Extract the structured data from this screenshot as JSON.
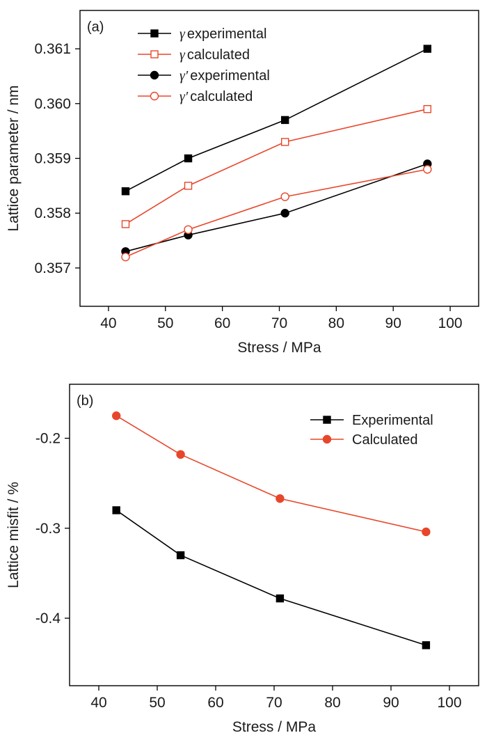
{
  "chart_data": [
    {
      "type": "line",
      "panel_label": "(a)",
      "xlabel": "Stress / MPa",
      "ylabel": "Lattice parameter / nm",
      "xlim": [
        35,
        105
      ],
      "ylim": [
        0.3563,
        0.3617
      ],
      "xticks": [
        40,
        50,
        60,
        70,
        80,
        90,
        100
      ],
      "xtick_labels": [
        "40",
        "50",
        "60",
        "70",
        "80",
        "90",
        "100"
      ],
      "yticks": [
        0.357,
        0.358,
        0.359,
        0.36,
        0.361
      ],
      "ytick_labels": [
        "0.357",
        "0.358",
        "0.359",
        "0.360",
        "0.361"
      ],
      "grid": false,
      "legend_position": "top-left",
      "series": [
        {
          "name": "γ experimental",
          "symbol": "γ",
          "label": "experimental",
          "color": "#000000",
          "marker": "square",
          "filled": true,
          "x": [
            43,
            54,
            71,
            96
          ],
          "y": [
            0.3584,
            0.359,
            0.3597,
            0.361
          ]
        },
        {
          "name": "γ calculated",
          "symbol": "γ",
          "label": "calculated",
          "color": "#e8462a",
          "marker": "square",
          "filled": false,
          "x": [
            43,
            54,
            71,
            96
          ],
          "y": [
            0.3578,
            0.3585,
            0.3593,
            0.3599
          ]
        },
        {
          "name": "γ′ experimental",
          "symbol": "γ′",
          "label": "experimental",
          "color": "#000000",
          "marker": "circle",
          "filled": true,
          "x": [
            43,
            54,
            71,
            96
          ],
          "y": [
            0.3573,
            0.3576,
            0.358,
            0.3589
          ]
        },
        {
          "name": "γ′ calculated",
          "symbol": "γ′",
          "label": "calculated",
          "color": "#e8462a",
          "marker": "circle",
          "filled": false,
          "x": [
            43,
            54,
            71,
            96
          ],
          "y": [
            0.3572,
            0.3577,
            0.3583,
            0.3588
          ]
        }
      ]
    },
    {
      "type": "line",
      "panel_label": "(b)",
      "xlabel": "Stress / MPa",
      "ylabel": "Lattice misfit / %",
      "xlim": [
        35,
        105
      ],
      "ylim": [
        -0.475,
        -0.14
      ],
      "xticks": [
        40,
        50,
        60,
        70,
        80,
        90,
        100
      ],
      "xtick_labels": [
        "40",
        "50",
        "60",
        "70",
        "80",
        "90",
        "100"
      ],
      "yticks": [
        -0.2,
        -0.3,
        -0.4
      ],
      "ytick_labels": [
        "-0.2",
        "-0.3",
        "-0.4"
      ],
      "grid": false,
      "legend_position": "top-right",
      "series": [
        {
          "name": "Experimental",
          "color": "#000000",
          "marker": "square",
          "filled": true,
          "x": [
            43,
            54,
            71,
            96
          ],
          "y": [
            -0.28,
            -0.33,
            -0.378,
            -0.43
          ]
        },
        {
          "name": "Calculated",
          "color": "#e8462a",
          "marker": "circle",
          "filled": true,
          "x": [
            43,
            54,
            71,
            96
          ],
          "y": [
            -0.175,
            -0.218,
            -0.267,
            -0.304
          ]
        }
      ]
    }
  ]
}
